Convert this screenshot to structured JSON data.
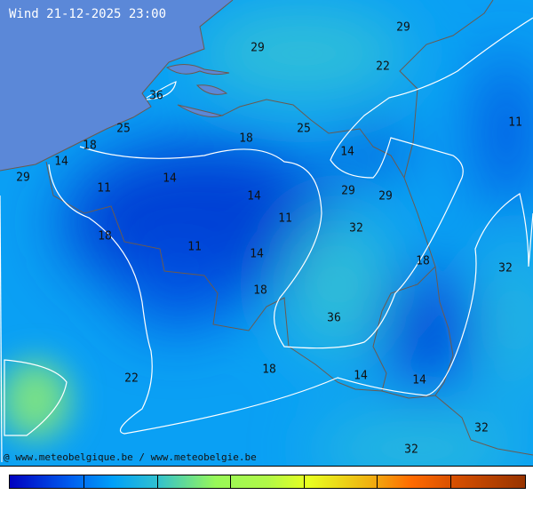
{
  "title": "Wind 21-12-2025 23:00",
  "credit": "@ www.meteobelgique.be / www.meteobelgie.be",
  "colors": {
    "sea": "#5b88d8",
    "base": "#0aa0f4",
    "low": "#0044d8",
    "high": "#40d0b0",
    "contour": "#ffffff",
    "border": "#6b5a50"
  },
  "colorbar": {
    "stops": [
      "#0000c0",
      "#00a0f8",
      "#98f858",
      "#e8ff20",
      "#ff6a00",
      "#983400"
    ],
    "segments": 7
  },
  "map": {
    "labels": [
      "29",
      "29",
      "22",
      "36",
      "25",
      "18",
      "14",
      "29",
      "18",
      "25",
      "11",
      "14",
      "11",
      "14",
      "14",
      "11",
      "29",
      "29",
      "32",
      "18",
      "11",
      "14",
      "18",
      "32",
      "18",
      "36",
      "22",
      "18",
      "14",
      "14",
      "32",
      "32"
    ]
  }
}
